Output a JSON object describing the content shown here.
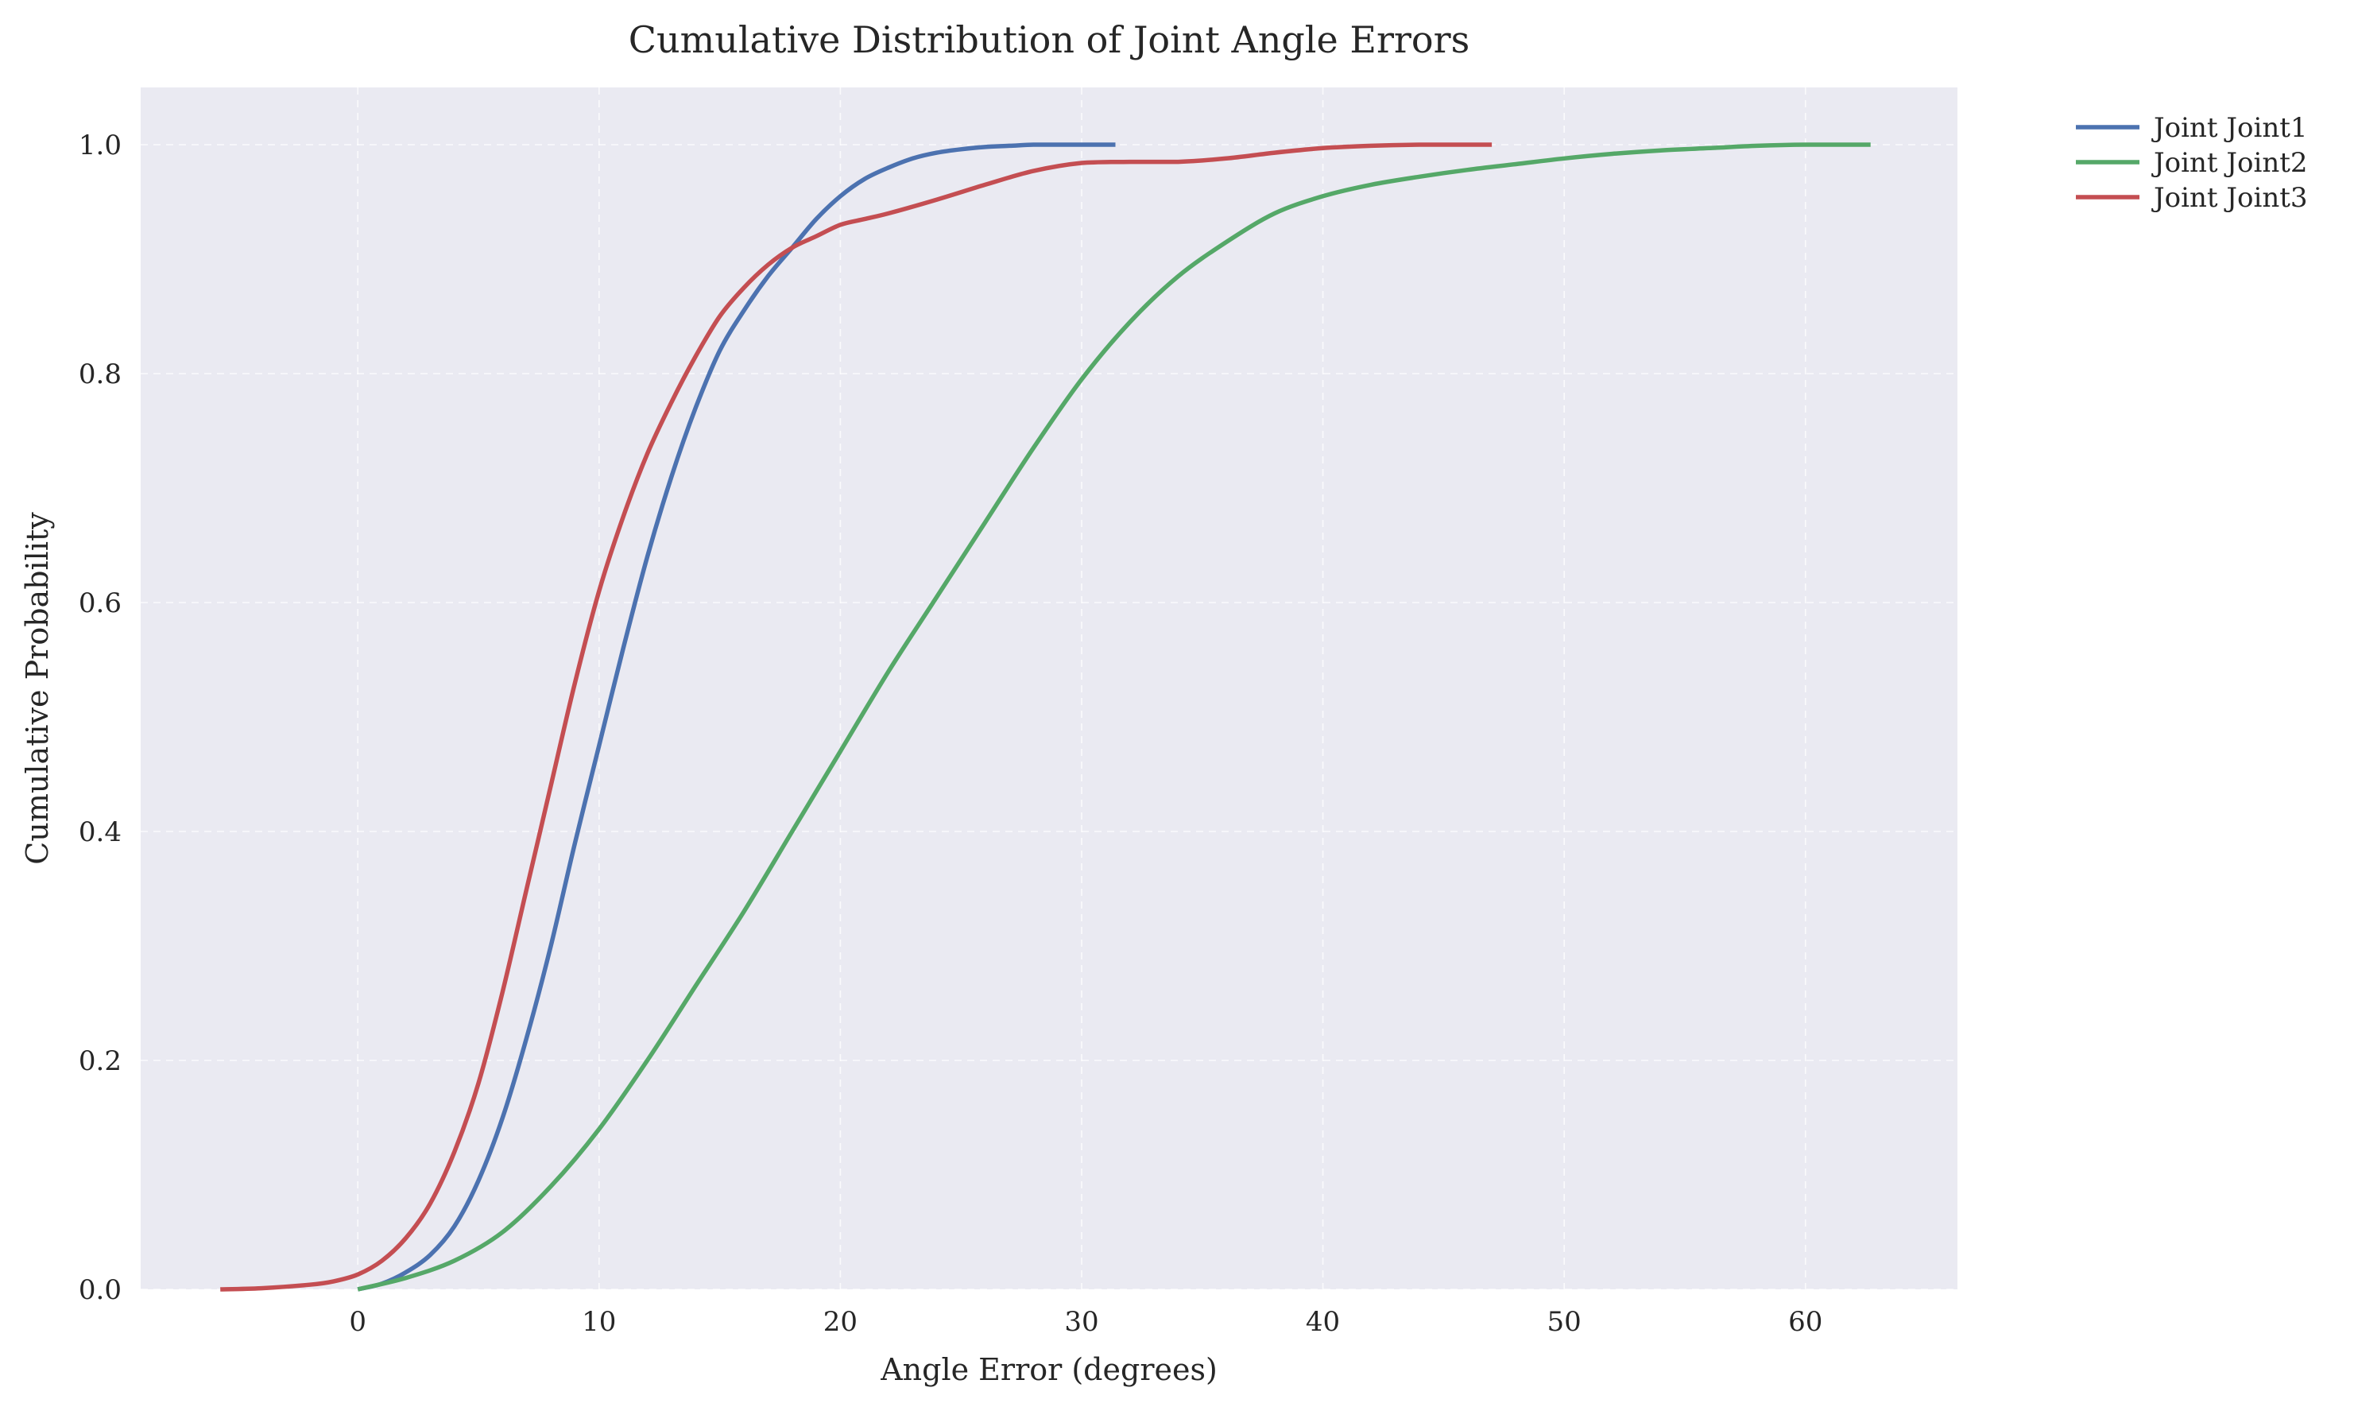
{
  "chart_data": {
    "type": "line",
    "title": "Cumulative Distribution of Joint Angle Errors",
    "xlabel": "Angle Error (degrees)",
    "ylabel": "Cumulative Probability",
    "xlim": [
      -9,
      66.3
    ],
    "ylim": [
      0,
      1.05
    ],
    "xticks": [
      0,
      10,
      20,
      30,
      40,
      50,
      60
    ],
    "yticks": [
      0.0,
      0.2,
      0.4,
      0.6,
      0.8,
      1.0
    ],
    "xtick_labels": [
      "0",
      "10",
      "20",
      "30",
      "40",
      "50",
      "60"
    ],
    "ytick_labels": [
      "0.0",
      "0.2",
      "0.4",
      "0.6",
      "0.8",
      "1.0"
    ],
    "grid": true,
    "legend_position": "outside-top-right",
    "series": [
      {
        "name": "Joint Joint1",
        "color": "#4c72b0",
        "x": [
          0,
          1,
          2,
          3,
          4,
          5,
          6,
          7,
          8,
          9,
          10,
          11,
          12,
          13,
          14,
          15,
          16,
          17,
          18,
          19,
          20,
          21,
          22,
          23,
          24,
          25,
          26,
          27,
          28,
          29,
          30,
          31.4
        ],
        "y": [
          0.0,
          0.005,
          0.015,
          0.03,
          0.055,
          0.095,
          0.15,
          0.22,
          0.3,
          0.39,
          0.475,
          0.56,
          0.64,
          0.71,
          0.77,
          0.82,
          0.855,
          0.885,
          0.91,
          0.935,
          0.955,
          0.97,
          0.98,
          0.988,
          0.993,
          0.996,
          0.998,
          0.999,
          1.0,
          1.0,
          1.0,
          1.0
        ]
      },
      {
        "name": "Joint Joint2",
        "color": "#55a868",
        "x": [
          0,
          2,
          4,
          6,
          8,
          10,
          12,
          14,
          16,
          18,
          20,
          22,
          24,
          26,
          28,
          30,
          32,
          34,
          36,
          38,
          40,
          42,
          44,
          46,
          48,
          50,
          52,
          54,
          56,
          58,
          60,
          62.7
        ],
        "y": [
          0.0,
          0.01,
          0.025,
          0.05,
          0.09,
          0.14,
          0.2,
          0.265,
          0.33,
          0.4,
          0.47,
          0.54,
          0.605,
          0.67,
          0.735,
          0.795,
          0.845,
          0.885,
          0.915,
          0.94,
          0.955,
          0.965,
          0.972,
          0.978,
          0.983,
          0.988,
          0.992,
          0.995,
          0.997,
          0.999,
          1.0,
          1.0
        ]
      },
      {
        "name": "Joint Joint3",
        "color": "#c44e52",
        "x": [
          -5.7,
          -4,
          -2,
          -1,
          0,
          1,
          2,
          3,
          4,
          5,
          6,
          7,
          8,
          9,
          10,
          11,
          12,
          13,
          14,
          15,
          16,
          17,
          18,
          19,
          20,
          21,
          22,
          24,
          26,
          28,
          30,
          32,
          34,
          36,
          38,
          40,
          42,
          44,
          46,
          47
        ],
        "y": [
          0.0,
          0.001,
          0.004,
          0.007,
          0.013,
          0.025,
          0.045,
          0.075,
          0.12,
          0.18,
          0.26,
          0.35,
          0.44,
          0.53,
          0.61,
          0.675,
          0.73,
          0.775,
          0.815,
          0.85,
          0.875,
          0.895,
          0.91,
          0.92,
          0.93,
          0.935,
          0.94,
          0.952,
          0.965,
          0.977,
          0.984,
          0.985,
          0.985,
          0.988,
          0.993,
          0.997,
          0.999,
          1.0,
          1.0,
          1.0
        ]
      }
    ]
  }
}
